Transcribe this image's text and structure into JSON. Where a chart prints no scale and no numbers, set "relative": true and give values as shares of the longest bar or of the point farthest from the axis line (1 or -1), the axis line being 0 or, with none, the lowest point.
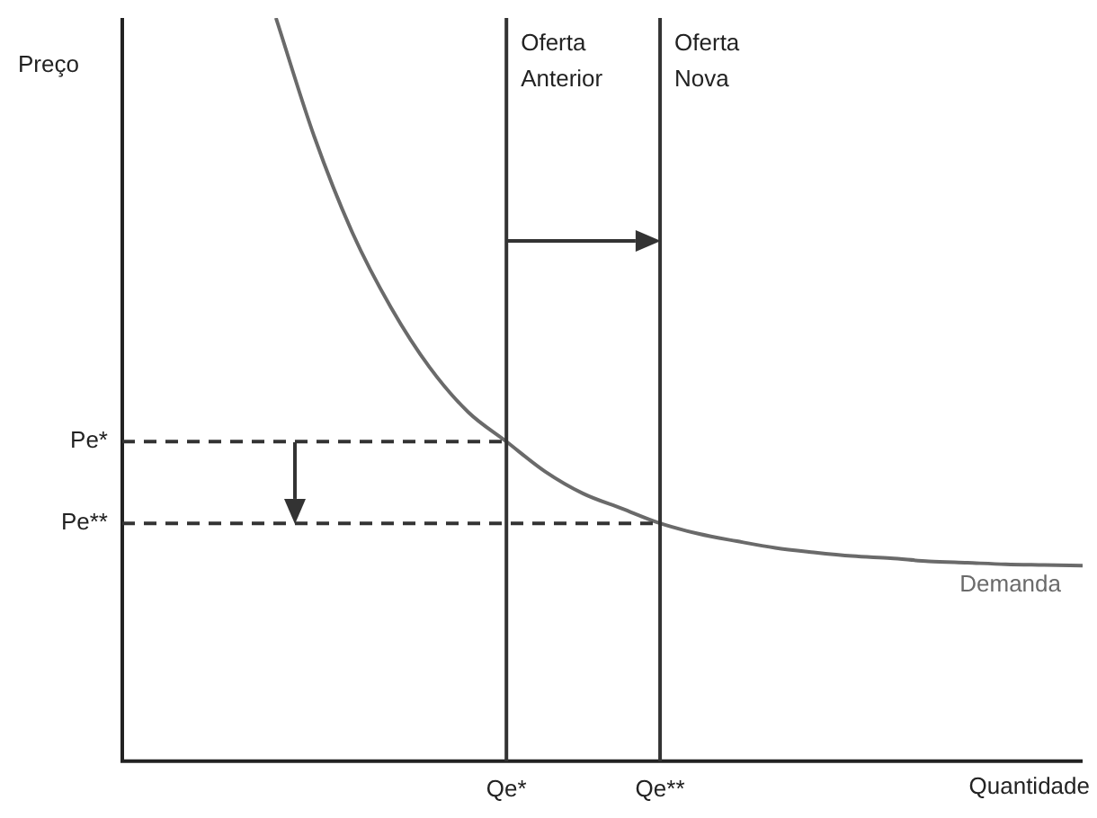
{
  "chart_data": {
    "type": "line",
    "relative": true,
    "xlabel": "Quantidade",
    "ylabel": "Preço",
    "categories": [
      null,
      null,
      null,
      null,
      null,
      null,
      null,
      null,
      null,
      null,
      "Qe*",
      null,
      null,
      null,
      "Qe**",
      null,
      null,
      null,
      null,
      null,
      null,
      null,
      null,
      null,
      null,
      null
    ],
    "series": [
      {
        "name": "Demanda",
        "color": "#6a6a6a",
        "values": [
          null,
          null,
          null,
          null,
          1.0,
          0.84,
          0.71,
          0.61,
          0.53,
          0.47,
          0.43,
          0.39,
          0.36,
          0.34,
          0.32,
          0.306,
          0.296,
          0.287,
          0.281,
          0.276,
          0.273,
          0.269,
          0.267,
          0.265,
          0.264,
          0.263
        ]
      }
    ],
    "ref_lines": [
      {
        "axis": "x",
        "value": "Qe*",
        "label": "Oferta Anterior",
        "color": "#333333",
        "line_style": "solid"
      },
      {
        "axis": "x",
        "value": "Qe**",
        "label": "Oferta Nova",
        "color": "#333333",
        "line_style": "solid"
      },
      {
        "axis": "y",
        "value": 0.43,
        "label": "Pe*",
        "color": "#333333",
        "line_style": "dashed"
      },
      {
        "axis": "y",
        "value": 0.32,
        "label": "Pe**",
        "color": "#333333",
        "line_style": "dashed"
      }
    ],
    "legend": false,
    "grid": false,
    "marker": "none",
    "line_style": "solid"
  }
}
